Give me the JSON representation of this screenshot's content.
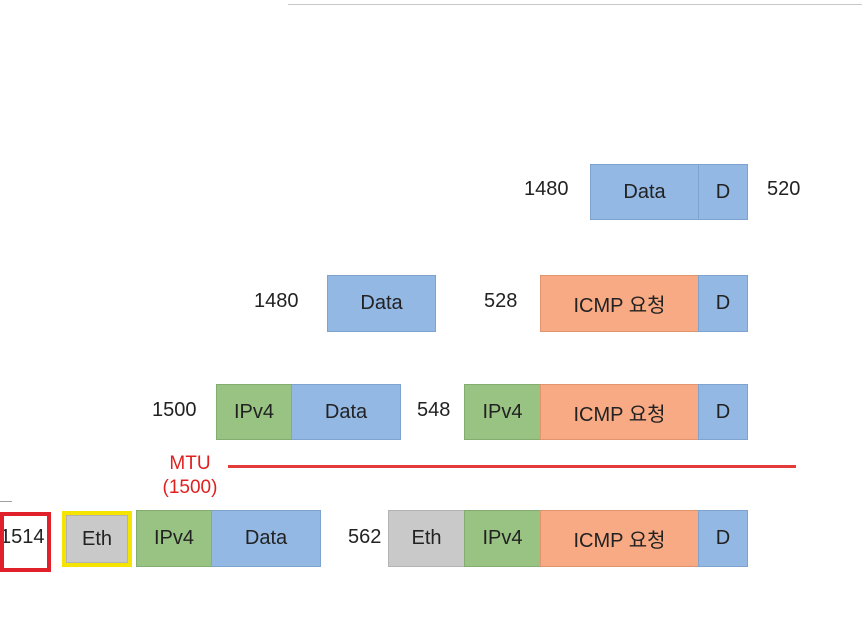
{
  "row1": {
    "left_size": "1480",
    "data_label": "Data",
    "d_label": "D",
    "right_size": "520"
  },
  "row2": {
    "left_size": "1480",
    "data_label": "Data",
    "right_size": "528",
    "icmp_label": "ICMP 요청",
    "d_label": "D"
  },
  "row3": {
    "left_size": "1500",
    "ipv4_label": "IPv4",
    "data_label": "Data",
    "right_size": "548",
    "ipv4_label_2": "IPv4",
    "icmp_label": "ICMP 요청",
    "d_label": "D"
  },
  "mtu": {
    "label": "MTU",
    "value": "(1500)",
    "color": "#e33a3a"
  },
  "row4": {
    "left_size": "1514",
    "eth_label": "Eth",
    "ipv4_label": "IPv4",
    "data_label": "Data",
    "right_size": "562",
    "eth_label_2": "Eth",
    "ipv4_label_2": "IPv4",
    "icmp_label": "ICMP 요청",
    "d_label": "D"
  },
  "colors": {
    "data": "#93b8e3",
    "ipv4": "#98c383",
    "icmp": "#f7aa84",
    "eth": "#c9c9c9",
    "highlight_red": "#e0202a",
    "highlight_yellow": "#f5e400"
  }
}
